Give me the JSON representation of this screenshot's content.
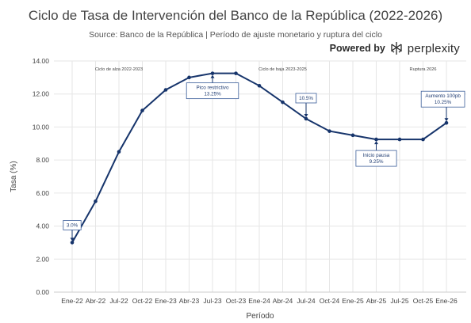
{
  "header": {
    "title": "Ciclo de Tasa de Intervención del Banco de la República (2022-2026)",
    "subtitle": "Source: Banco de la República | Período de ajuste monetario y ruptura del ciclo",
    "brand_prefix": "Powered by",
    "brand_name": "perplexity",
    "brand_icon": "perplexity-logo-icon"
  },
  "colors": {
    "line": "#16346b",
    "grid": "#e6e6e6",
    "annotation_border": "#3a5d99"
  },
  "chart_data": {
    "type": "line",
    "title": "Ciclo de Tasa de Intervención del Banco de la República (2022-2026)",
    "xlabel": "Período",
    "ylabel": "Tasa (%)",
    "ylim": [
      0,
      14
    ],
    "yticks": [
      "0.00",
      "2.00",
      "4.00",
      "6.00",
      "8.00",
      "10.00",
      "12.00",
      "14.00"
    ],
    "categories": [
      "Ene-22",
      "Abr-22",
      "Jul-22",
      "Oct-22",
      "Ene-23",
      "Abr-23",
      "Jul-23",
      "Oct-23",
      "Ene-24",
      "Abr-24",
      "Jul-24",
      "Oct-24",
      "Ene-25",
      "Abr-25",
      "Jul-25",
      "Oct-25",
      "Ene-26"
    ],
    "values": [
      3.0,
      5.5,
      8.5,
      11.0,
      12.25,
      13.0,
      13.25,
      13.25,
      12.5,
      11.5,
      10.5,
      9.75,
      9.5,
      9.25,
      9.25,
      9.25,
      10.25
    ],
    "grid": true,
    "period_labels": [
      {
        "text": "Ciclo de alza 2022-2023",
        "x_index": 2
      },
      {
        "text": "Ciclo de baja 2023-2025",
        "x_index": 9
      },
      {
        "text": "Ruptura 2026",
        "x_index": 15
      }
    ],
    "annotations": [
      {
        "lines": [
          "3.0%"
        ],
        "x_index": 0,
        "value": 3.0
      },
      {
        "lines": [
          "Pico restrictivo",
          "13.25%"
        ],
        "x_index": 6,
        "value": 13.25
      },
      {
        "lines": [
          "10.5%"
        ],
        "x_index": 10,
        "value": 10.5
      },
      {
        "lines": [
          "Inicio pausa",
          "9.25%"
        ],
        "x_index": 13,
        "value": 9.25
      },
      {
        "lines": [
          "Aumento 100pb",
          "10.25%"
        ],
        "x_index": 16,
        "value": 10.25
      }
    ]
  }
}
